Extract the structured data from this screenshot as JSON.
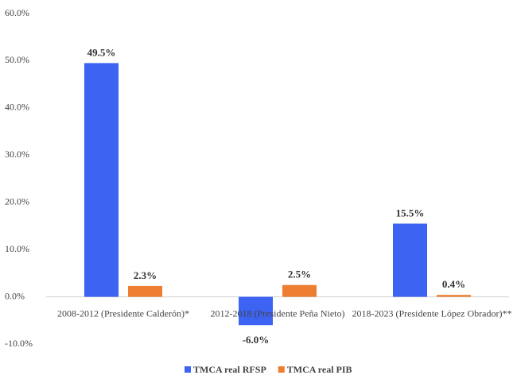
{
  "chart_data": {
    "type": "bar",
    "categories": [
      "2008-2012 (Presidente Calderón)*",
      "2012-2018 (Presidente Peña Nieto)",
      "2018-2023 (Presidente López Obrador)**"
    ],
    "series": [
      {
        "name": "TMCA real RFSP",
        "color": "#3d63f2",
        "values": [
          49.5,
          -6.0,
          15.5
        ],
        "value_labels": [
          "49.5%",
          "-6.0%",
          "15.5%"
        ]
      },
      {
        "name": "TMCA real PIB",
        "color": "#ed7d31",
        "values": [
          2.3,
          2.5,
          0.4
        ],
        "value_labels": [
          "2.3%",
          "2.5%",
          "0.4%"
        ]
      }
    ],
    "ylim": [
      -10,
      60
    ],
    "yticks": [
      {
        "value": -10,
        "label": "-10.0%"
      },
      {
        "value": 0,
        "label": "0.0%"
      },
      {
        "value": 10,
        "label": "10.0%"
      },
      {
        "value": 20,
        "label": "20.0%"
      },
      {
        "value": 30,
        "label": "30.0%"
      },
      {
        "value": 40,
        "label": "40.0%"
      },
      {
        "value": 50,
        "label": "50.0%"
      },
      {
        "value": 60,
        "label": "60.0%"
      }
    ],
    "grid": false,
    "legend": "bottom"
  }
}
